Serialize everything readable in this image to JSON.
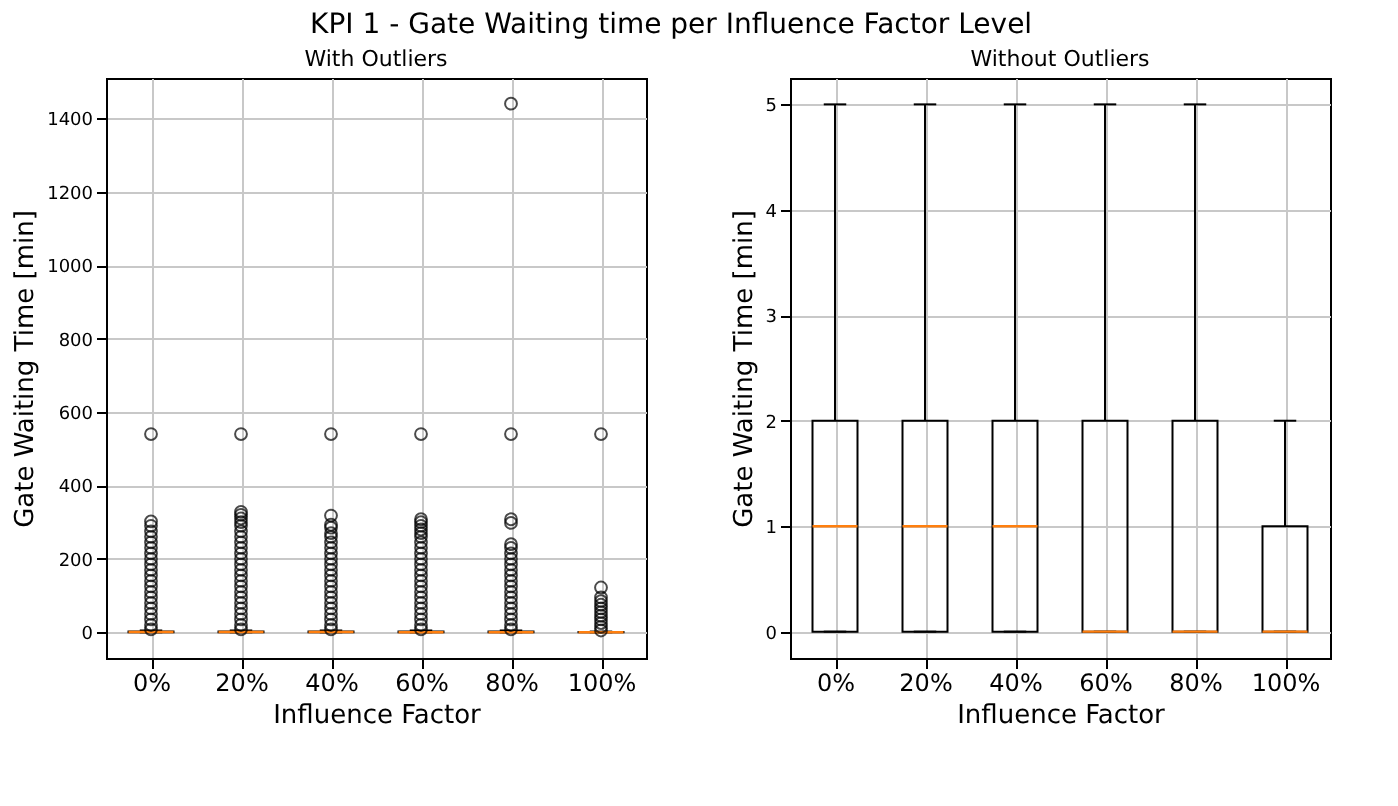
{
  "chart_data": [
    {
      "type": "box",
      "title": "With Outliers",
      "annotations": [
        "KPI 1 - Gate Waiting time per Influence Factor Level"
      ],
      "xlabel": "Influence Factor",
      "ylabel": "Gate Waiting Time [min]",
      "categories": [
        "0%",
        "20%",
        "40%",
        "60%",
        "80%",
        "100%"
      ],
      "ylim": [
        -70,
        1510
      ],
      "yticks": [
        0,
        200,
        400,
        600,
        800,
        1000,
        1200,
        1400
      ],
      "grid": true,
      "boxes": [
        {
          "low": 0,
          "q1": 0,
          "median": 1,
          "q3": 2,
          "high": 5,
          "outliers": [
            8,
            20,
            35,
            50,
            65,
            80,
            95,
            110,
            125,
            140,
            155,
            170,
            185,
            200,
            215,
            230,
            245,
            260,
            275,
            290,
            302,
            540
          ]
        },
        {
          "low": 0,
          "q1": 0,
          "median": 1,
          "q3": 2,
          "high": 5,
          "outliers": [
            8,
            20,
            35,
            50,
            65,
            80,
            95,
            110,
            125,
            140,
            155,
            170,
            185,
            200,
            215,
            230,
            245,
            260,
            275,
            290,
            300,
            310,
            320,
            328,
            540
          ]
        },
        {
          "low": 0,
          "q1": 0,
          "median": 1,
          "q3": 2,
          "high": 5,
          "outliers": [
            8,
            20,
            35,
            50,
            65,
            80,
            95,
            110,
            125,
            140,
            155,
            170,
            185,
            200,
            215,
            230,
            245,
            260,
            270,
            285,
            293,
            318,
            540
          ]
        },
        {
          "low": 0,
          "q1": 0,
          "median": 0,
          "q3": 2,
          "high": 5,
          "outliers": [
            8,
            20,
            35,
            50,
            65,
            80,
            95,
            110,
            125,
            140,
            155,
            170,
            185,
            200,
            215,
            230,
            245,
            260,
            270,
            280,
            290,
            300,
            308,
            540
          ]
        },
        {
          "low": 0,
          "q1": 0,
          "median": 0,
          "q3": 2,
          "high": 5,
          "outliers": [
            8,
            20,
            35,
            50,
            65,
            80,
            95,
            110,
            125,
            140,
            155,
            170,
            185,
            200,
            215,
            230,
            240,
            298,
            308,
            540,
            1440
          ]
        },
        {
          "low": 0,
          "q1": 0,
          "median": 0,
          "q3": 1,
          "high": 2,
          "outliers": [
            5,
            15,
            25,
            35,
            45,
            55,
            65,
            75,
            85,
            95,
            122,
            540
          ]
        }
      ]
    },
    {
      "type": "box",
      "title": "Without Outliers",
      "xlabel": "Influence Factor",
      "ylabel": "Gate Waiting Time [min]",
      "categories": [
        "0%",
        "20%",
        "40%",
        "60%",
        "80%",
        "100%"
      ],
      "ylim": [
        -0.25,
        5.25
      ],
      "yticks": [
        0,
        1,
        2,
        3,
        4,
        5
      ],
      "grid": true,
      "boxes": [
        {
          "low": 0,
          "q1": 0,
          "median": 1,
          "q3": 2,
          "high": 5
        },
        {
          "low": 0,
          "q1": 0,
          "median": 1,
          "q3": 2,
          "high": 5
        },
        {
          "low": 0,
          "q1": 0,
          "median": 1,
          "q3": 2,
          "high": 5
        },
        {
          "low": 0,
          "q1": 0,
          "median": 0,
          "q3": 2,
          "high": 5
        },
        {
          "low": 0,
          "q1": 0,
          "median": 0,
          "q3": 2,
          "high": 5
        },
        {
          "low": 0,
          "q1": 0,
          "median": 0,
          "q3": 1,
          "high": 2
        }
      ]
    }
  ]
}
